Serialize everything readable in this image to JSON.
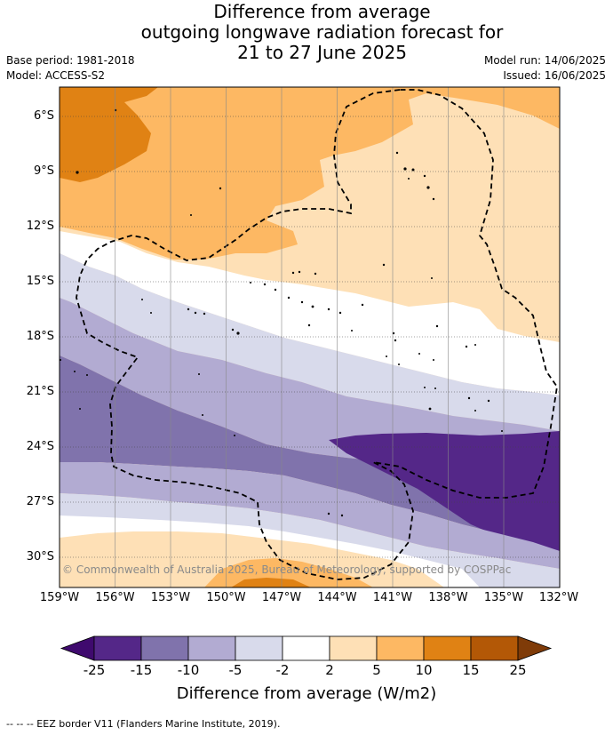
{
  "title": {
    "line1": "Difference from average",
    "line2": "outgoing longwave radiation forecast for",
    "line3": "21 to 27 June 2025"
  },
  "meta": {
    "base_period": "Base period: 1981-2018",
    "model": "Model: ACCESS-S2",
    "model_run": "Model run: 14/06/2025",
    "issued": "Issued: 16/06/2025"
  },
  "map": {
    "lat_labels": [
      "6°S",
      "9°S",
      "12°S",
      "15°S",
      "18°S",
      "21°S",
      "24°S",
      "27°S",
      "30°S"
    ],
    "lon_labels": [
      "159°W",
      "156°W",
      "153°W",
      "150°W",
      "147°W",
      "144°W",
      "141°W",
      "138°W",
      "135°W",
      "132°W"
    ],
    "copyright": "© Commonwealth of Australia 2025, Bureau of Meteorology, supported by COSPPac"
  },
  "colors": {
    "lt_minus25": "#3f0a6e",
    "m25_m15": "#542788",
    "m15_m10": "#8073ac",
    "m10_m5": "#b2abd2",
    "m5_m2": "#d8daeb",
    "m2_2": "#ffffff",
    "p2_p5": "#fee0b6",
    "p5_p10": "#fdb863",
    "p10_p15": "#e08214",
    "p15_p25": "#b35806",
    "gt_25": "#7f3b08"
  },
  "colorbar": {
    "ticks": [
      "-25",
      "-15",
      "-10",
      "-5",
      "-2",
      "2",
      "5",
      "10",
      "15",
      "25"
    ],
    "label": "Difference from average (W/m2)"
  },
  "footer": "--  --  -- EEZ border V11 (Flanders Marine Institute, 2019)."
}
